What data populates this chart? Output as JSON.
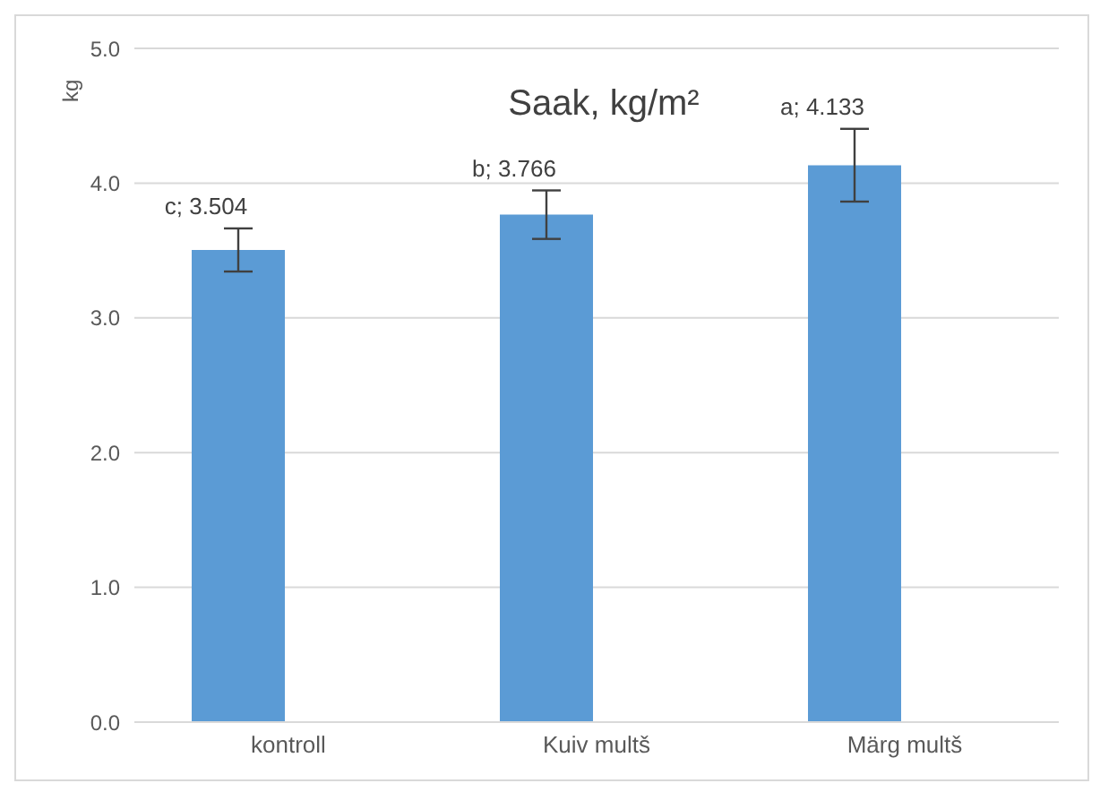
{
  "chart_data": {
    "type": "bar",
    "title": "Saak, kg/m²",
    "ylabel": "kg",
    "categories": [
      "kontroll",
      "Kuiv multš",
      "Märg multš"
    ],
    "values": [
      3.504,
      3.766,
      4.133
    ],
    "value_labels": [
      "c; 3.504",
      "b; 3.766",
      "a; 4.133"
    ],
    "errors": [
      0.16,
      0.18,
      0.27
    ],
    "color": "#5b9bd5",
    "ylim": [
      0,
      5
    ],
    "yticks": [
      {
        "value": 0,
        "label": "0.0"
      },
      {
        "value": 1,
        "label": "1.0"
      },
      {
        "value": 2,
        "label": "2.0"
      },
      {
        "value": 3,
        "label": "3.0"
      },
      {
        "value": 4,
        "label": "4.0"
      },
      {
        "value": 5,
        "label": "5.0"
      }
    ],
    "grid": "y",
    "legend": false
  }
}
